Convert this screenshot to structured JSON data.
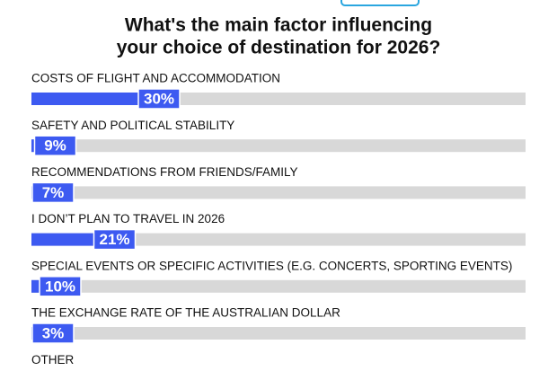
{
  "chart_data": {
    "type": "bar",
    "title": [
      "What's the main factor influencing",
      "your choice of destination for 2026?"
    ],
    "categories": [
      "COSTS OF FLIGHT AND ACCOMMODATION",
      "SAFETY AND POLITICAL STABILITY",
      "RECOMMENDATIONS FROM FRIENDS/FAMILY",
      "I DON’T PLAN TO TRAVEL IN 2026",
      "SPECIAL EVENTS OR SPECIFIC ACTIVITIES (E.G. CONCERTS, SPORTING EVENTS)",
      "THE EXCHANGE RATE OF THE AUSTRALIAN DOLLAR",
      "OTHER"
    ],
    "values": [
      30,
      9,
      7,
      21,
      10,
      3,
      null
    ],
    "value_labels": [
      "30%",
      "9%",
      "7%",
      "21%",
      "10%",
      "3%",
      null
    ],
    "xlim": [
      0,
      100
    ],
    "color": "#3d5af1",
    "track_color": "#d8d8d8"
  }
}
